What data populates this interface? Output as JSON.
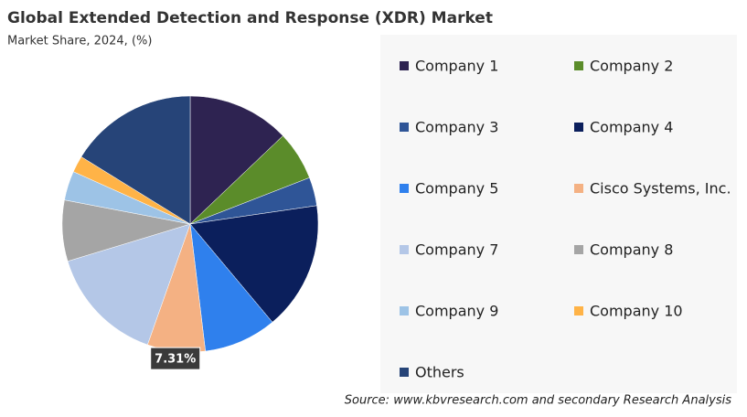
{
  "chart_data": {
    "type": "pie",
    "title": "Global Extended Detection and Response (XDR) Market",
    "subtitle": "Market Share, 2024, (%)",
    "categories": [
      "Company 1",
      "Company 2",
      "Company 3",
      "Company 4",
      "Company 5",
      "Cisco Systems, Inc.",
      "Company 7",
      "Company 8",
      "Company 9",
      "Company 10",
      "Others"
    ],
    "values": [
      12.9,
      6.2,
      3.6,
      16.2,
      9.2,
      7.31,
      14.9,
      7.7,
      3.7,
      2.1,
      16.19
    ],
    "value_labels": [
      null,
      null,
      null,
      null,
      null,
      "7.31%",
      null,
      null,
      null,
      null,
      null
    ],
    "colors": [
      "#2e2351",
      "#5b8c2a",
      "#2f5597",
      "#0b1f5c",
      "#2f80ed",
      "#f4b183",
      "#b4c7e7",
      "#a5a5a5",
      "#9dc3e6",
      "#ffb347",
      "#264478"
    ],
    "source": "Source: www.kbvresearch.com and secondary Research Analysis"
  }
}
